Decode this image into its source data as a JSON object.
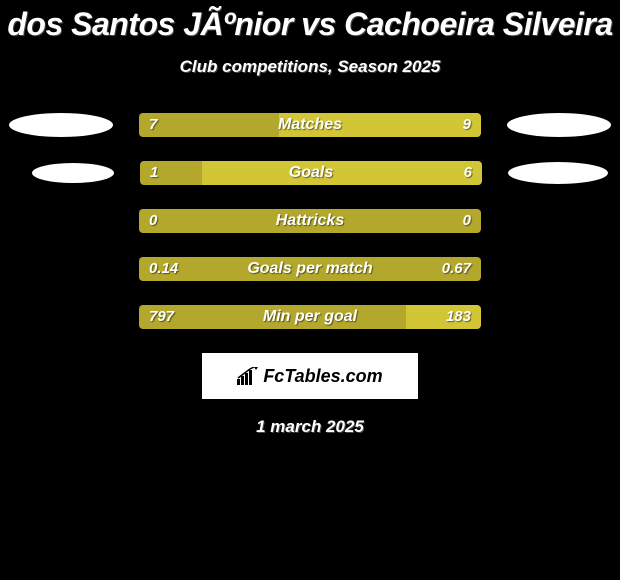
{
  "title": {
    "text": "dos Santos JÃºnior vs Cachoeira Silveira",
    "fontsize": 32
  },
  "subtitle": {
    "text": "Club competitions, Season 2025",
    "fontsize": 17
  },
  "date": "1 march 2025",
  "brand": "FcTables.com",
  "colors": {
    "left": "#b3a82c",
    "right": "#d2c636",
    "background": "#000000",
    "text": "#ffffff"
  },
  "stats": [
    {
      "label": "Matches",
      "left_value": "7",
      "right_value": "9",
      "left_pct": 41,
      "right_pct": 59,
      "show_ellipse": true
    },
    {
      "label": "Goals",
      "left_value": "1",
      "right_value": "6",
      "left_pct": 18,
      "right_pct": 82,
      "show_ellipse": true
    },
    {
      "label": "Hattricks",
      "left_value": "0",
      "right_value": "0",
      "left_pct": 100,
      "right_pct": 0,
      "show_ellipse": false
    },
    {
      "label": "Goals per match",
      "left_value": "0.14",
      "right_value": "0.67",
      "left_pct": 100,
      "right_pct": 0,
      "show_ellipse": false
    },
    {
      "label": "Min per goal",
      "left_value": "797",
      "right_value": "183",
      "left_pct": 78,
      "right_pct": 22,
      "show_ellipse": false
    }
  ]
}
